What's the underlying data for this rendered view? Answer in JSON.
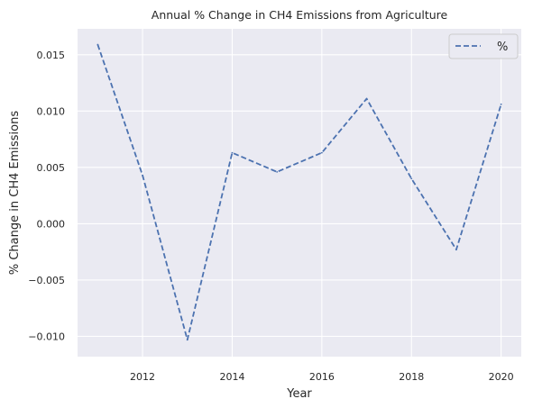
{
  "chart_data": {
    "type": "line",
    "title": "Annual % Change in CH4 Emissions from Agriculture",
    "xlabel": "Year",
    "ylabel": "% Change in CH4 Emissions",
    "x": [
      2011,
      2012,
      2013,
      2014,
      2015,
      2016,
      2017,
      2018,
      2019,
      2020
    ],
    "series": [
      {
        "name": "%",
        "values": [
          0.0159,
          0.0043,
          -0.0103,
          0.0063,
          0.0046,
          0.0063,
          0.0111,
          0.004,
          -0.0023,
          0.0106
        ],
        "color": "#4c72b0",
        "line_style": "dashed"
      }
    ],
    "xlim": [
      2010.55,
      2020.45
    ],
    "ylim": [
      -0.0118,
      0.0173
    ],
    "x_ticks": [
      2012,
      2014,
      2016,
      2018,
      2020
    ],
    "x_tick_labels": [
      "2012",
      "2014",
      "2016",
      "2018",
      "2020"
    ],
    "y_ticks": [
      -0.01,
      -0.005,
      0.0,
      0.005,
      0.01,
      0.015
    ],
    "y_tick_labels": [
      "−0.010",
      "−0.005",
      "0.000",
      "0.005",
      "0.010",
      "0.015"
    ],
    "grid": true,
    "legend_position": "top-right",
    "background_color": "#eaeaf2",
    "grid_color": "#ffffff"
  }
}
